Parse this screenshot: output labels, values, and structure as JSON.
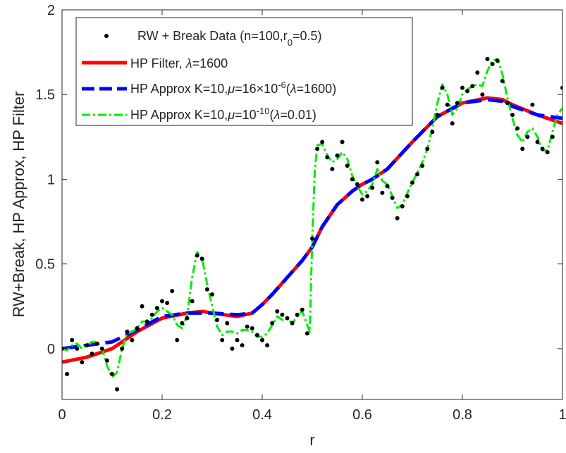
{
  "chart_data": {
    "type": "scatter",
    "xlabel": "r",
    "ylabel": "RW+Break, HP Approx, HP Filter",
    "xlim": [
      0,
      1
    ],
    "ylim": [
      -0.3,
      2
    ],
    "xticks": [
      0,
      0.2,
      0.4,
      0.6,
      0.8,
      1
    ],
    "xtick_labels": [
      "0",
      "0.2",
      "0.4",
      "0.6",
      "0.8",
      "1"
    ],
    "yticks": [
      0,
      0.5,
      1,
      1.5,
      2
    ],
    "ytick_labels": [
      "0",
      "0.5",
      "1",
      "1.5",
      "2"
    ],
    "grid": false,
    "legend_position": "top-left",
    "legend": [
      {
        "label": "RW + Break Data (n=100,r0=0.5)",
        "style": "marker",
        "color": "#000000"
      },
      {
        "label": "HP Filter, λ=1600",
        "style": "solid",
        "color": "#ff0000"
      },
      {
        "label": "HP Approx  K=10,μ=16×10-6(λ=1600)",
        "style": "dashed",
        "color": "#0000ff"
      },
      {
        "label": "HP Approx  K=10,μ=10-10(λ=0.01)",
        "style": "dashdot",
        "color": "#00ee00"
      }
    ],
    "series": [
      {
        "name": "RW + Break Data (n=100,r0=0.5)",
        "kind": "scatter",
        "color": "#000000",
        "points": [
          [
            0.0,
            0.0
          ],
          [
            0.01,
            -0.15
          ],
          [
            0.02,
            0.05
          ],
          [
            0.03,
            0.0
          ],
          [
            0.04,
            -0.08
          ],
          [
            0.05,
            0.02
          ],
          [
            0.06,
            -0.03
          ],
          [
            0.07,
            0.03
          ],
          [
            0.08,
            0.0
          ],
          [
            0.09,
            -0.07
          ],
          [
            0.1,
            -0.15
          ],
          [
            0.11,
            -0.24
          ],
          [
            0.12,
            0.0
          ],
          [
            0.13,
            0.1
          ],
          [
            0.14,
            0.05
          ],
          [
            0.15,
            0.12
          ],
          [
            0.16,
            0.25
          ],
          [
            0.17,
            0.16
          ],
          [
            0.18,
            0.2
          ],
          [
            0.19,
            0.24
          ],
          [
            0.2,
            0.28
          ],
          [
            0.21,
            0.27
          ],
          [
            0.22,
            0.34
          ],
          [
            0.23,
            0.05
          ],
          [
            0.24,
            0.15
          ],
          [
            0.25,
            0.18
          ],
          [
            0.26,
            0.28
          ],
          [
            0.27,
            0.55
          ],
          [
            0.28,
            0.53
          ],
          [
            0.29,
            0.35
          ],
          [
            0.3,
            0.32
          ],
          [
            0.31,
            0.17
          ],
          [
            0.32,
            0.05
          ],
          [
            0.33,
            0.15
          ],
          [
            0.34,
            0.0
          ],
          [
            0.35,
            0.05
          ],
          [
            0.36,
            0.02
          ],
          [
            0.37,
            0.13
          ],
          [
            0.38,
            0.12
          ],
          [
            0.39,
            0.08
          ],
          [
            0.4,
            0.05
          ],
          [
            0.41,
            0.02
          ],
          [
            0.42,
            0.15
          ],
          [
            0.43,
            0.22
          ],
          [
            0.44,
            0.2
          ],
          [
            0.45,
            0.18
          ],
          [
            0.46,
            0.15
          ],
          [
            0.47,
            0.2
          ],
          [
            0.48,
            0.23
          ],
          [
            0.49,
            0.09
          ],
          [
            0.5,
            0.65
          ],
          [
            0.51,
            1.18
          ],
          [
            0.52,
            1.22
          ],
          [
            0.53,
            1.13
          ],
          [
            0.54,
            1.06
          ],
          [
            0.55,
            1.14
          ],
          [
            0.56,
            1.22
          ],
          [
            0.57,
            1.08
          ],
          [
            0.58,
            1.0
          ],
          [
            0.59,
            0.97
          ],
          [
            0.6,
            0.88
          ],
          [
            0.61,
            0.9
          ],
          [
            0.62,
            0.95
          ],
          [
            0.63,
            1.1
          ],
          [
            0.64,
            0.92
          ],
          [
            0.65,
            0.96
          ],
          [
            0.66,
            0.89
          ],
          [
            0.67,
            0.77
          ],
          [
            0.68,
            0.84
          ],
          [
            0.69,
            0.9
          ],
          [
            0.7,
            0.98
          ],
          [
            0.71,
            1.03
          ],
          [
            0.72,
            1.08
          ],
          [
            0.73,
            1.18
          ],
          [
            0.74,
            1.28
          ],
          [
            0.75,
            1.38
          ],
          [
            0.76,
            1.54
          ],
          [
            0.77,
            1.44
          ],
          [
            0.78,
            1.33
          ],
          [
            0.79,
            1.45
          ],
          [
            0.8,
            1.54
          ],
          [
            0.81,
            1.52
          ],
          [
            0.82,
            1.55
          ],
          [
            0.83,
            1.63
          ],
          [
            0.84,
            1.5
          ],
          [
            0.85,
            1.71
          ],
          [
            0.86,
            1.68
          ],
          [
            0.87,
            1.7
          ],
          [
            0.88,
            1.58
          ],
          [
            0.89,
            1.45
          ],
          [
            0.9,
            1.38
          ],
          [
            0.91,
            1.3
          ],
          [
            0.92,
            1.18
          ],
          [
            0.93,
            1.25
          ],
          [
            0.94,
            1.44
          ],
          [
            0.95,
            1.22
          ],
          [
            0.96,
            1.18
          ],
          [
            0.97,
            1.16
          ],
          [
            0.98,
            1.25
          ],
          [
            1.0,
            1.54
          ]
        ]
      },
      {
        "name": "HP Filter, λ=1600",
        "kind": "line",
        "style": "solid",
        "color": "#ff0000",
        "points": [
          [
            0.0,
            -0.08
          ],
          [
            0.05,
            -0.05
          ],
          [
            0.1,
            0.0
          ],
          [
            0.15,
            0.1
          ],
          [
            0.2,
            0.18
          ],
          [
            0.25,
            0.21
          ],
          [
            0.28,
            0.22
          ],
          [
            0.3,
            0.21
          ],
          [
            0.35,
            0.19
          ],
          [
            0.38,
            0.21
          ],
          [
            0.4,
            0.26
          ],
          [
            0.42,
            0.32
          ],
          [
            0.45,
            0.42
          ],
          [
            0.48,
            0.52
          ],
          [
            0.5,
            0.6
          ],
          [
            0.52,
            0.72
          ],
          [
            0.55,
            0.85
          ],
          [
            0.58,
            0.93
          ],
          [
            0.6,
            0.97
          ],
          [
            0.62,
            1.0
          ],
          [
            0.65,
            1.06
          ],
          [
            0.7,
            1.22
          ],
          [
            0.75,
            1.37
          ],
          [
            0.8,
            1.45
          ],
          [
            0.85,
            1.48
          ],
          [
            0.88,
            1.47
          ],
          [
            0.9,
            1.44
          ],
          [
            0.95,
            1.38
          ],
          [
            1.0,
            1.33
          ]
        ]
      },
      {
        "name": "HP Approx  K=10,μ=16×10-6(λ=1600)",
        "kind": "line",
        "style": "dashed",
        "color": "#0000ff",
        "points": [
          [
            0.0,
            0.0
          ],
          [
            0.05,
            0.02
          ],
          [
            0.1,
            0.04
          ],
          [
            0.15,
            0.11
          ],
          [
            0.2,
            0.19
          ],
          [
            0.25,
            0.21
          ],
          [
            0.28,
            0.21
          ],
          [
            0.3,
            0.21
          ],
          [
            0.35,
            0.2
          ],
          [
            0.38,
            0.21
          ],
          [
            0.4,
            0.26
          ],
          [
            0.42,
            0.32
          ],
          [
            0.45,
            0.42
          ],
          [
            0.48,
            0.52
          ],
          [
            0.5,
            0.6
          ],
          [
            0.52,
            0.72
          ],
          [
            0.55,
            0.85
          ],
          [
            0.58,
            0.93
          ],
          [
            0.6,
            0.97
          ],
          [
            0.62,
            1.0
          ],
          [
            0.65,
            1.06
          ],
          [
            0.7,
            1.22
          ],
          [
            0.75,
            1.37
          ],
          [
            0.8,
            1.45
          ],
          [
            0.85,
            1.47
          ],
          [
            0.88,
            1.46
          ],
          [
            0.9,
            1.43
          ],
          [
            0.95,
            1.38
          ],
          [
            1.0,
            1.36
          ]
        ]
      },
      {
        "name": "HP Approx  K=10,μ=10-10(λ=0.01)",
        "kind": "line",
        "style": "dashdot",
        "color": "#00ee00",
        "points": [
          [
            0.0,
            0.0
          ],
          [
            0.01,
            -0.01
          ],
          [
            0.02,
            0.02
          ],
          [
            0.03,
            0.03
          ],
          [
            0.04,
            0.0
          ],
          [
            0.05,
            0.02
          ],
          [
            0.06,
            0.04
          ],
          [
            0.07,
            0.04
          ],
          [
            0.08,
            0.0
          ],
          [
            0.09,
            -0.1
          ],
          [
            0.1,
            -0.17
          ],
          [
            0.11,
            -0.14
          ],
          [
            0.12,
            0.0
          ],
          [
            0.13,
            0.09
          ],
          [
            0.14,
            0.1
          ],
          [
            0.15,
            0.12
          ],
          [
            0.16,
            0.16
          ],
          [
            0.17,
            0.16
          ],
          [
            0.18,
            0.18
          ],
          [
            0.19,
            0.22
          ],
          [
            0.2,
            0.24
          ],
          [
            0.21,
            0.22
          ],
          [
            0.22,
            0.2
          ],
          [
            0.23,
            0.14
          ],
          [
            0.24,
            0.12
          ],
          [
            0.25,
            0.2
          ],
          [
            0.26,
            0.42
          ],
          [
            0.27,
            0.57
          ],
          [
            0.28,
            0.53
          ],
          [
            0.29,
            0.38
          ],
          [
            0.3,
            0.25
          ],
          [
            0.31,
            0.13
          ],
          [
            0.32,
            0.08
          ],
          [
            0.33,
            0.1
          ],
          [
            0.34,
            0.1
          ],
          [
            0.35,
            0.09
          ],
          [
            0.36,
            0.11
          ],
          [
            0.37,
            0.11
          ],
          [
            0.38,
            0.1
          ],
          [
            0.39,
            0.07
          ],
          [
            0.4,
            0.07
          ],
          [
            0.41,
            0.09
          ],
          [
            0.42,
            0.14
          ],
          [
            0.43,
            0.19
          ],
          [
            0.44,
            0.17
          ],
          [
            0.45,
            0.18
          ],
          [
            0.46,
            0.15
          ],
          [
            0.47,
            0.19
          ],
          [
            0.48,
            0.22
          ],
          [
            0.49,
            0.14
          ],
          [
            0.495,
            0.1
          ],
          [
            0.5,
            0.65
          ],
          [
            0.505,
            1.05
          ],
          [
            0.51,
            1.2
          ],
          [
            0.52,
            1.21
          ],
          [
            0.53,
            1.14
          ],
          [
            0.54,
            1.1
          ],
          [
            0.55,
            1.12
          ],
          [
            0.56,
            1.16
          ],
          [
            0.57,
            1.12
          ],
          [
            0.58,
            1.02
          ],
          [
            0.59,
            0.96
          ],
          [
            0.6,
            0.91
          ],
          [
            0.61,
            0.93
          ],
          [
            0.62,
            0.97
          ],
          [
            0.63,
            1.06
          ],
          [
            0.64,
            0.99
          ],
          [
            0.65,
            0.97
          ],
          [
            0.66,
            0.9
          ],
          [
            0.67,
            0.83
          ],
          [
            0.68,
            0.85
          ],
          [
            0.69,
            0.92
          ],
          [
            0.7,
            0.98
          ],
          [
            0.71,
            1.04
          ],
          [
            0.72,
            1.1
          ],
          [
            0.73,
            1.18
          ],
          [
            0.74,
            1.3
          ],
          [
            0.75,
            1.45
          ],
          [
            0.76,
            1.56
          ],
          [
            0.77,
            1.5
          ],
          [
            0.78,
            1.38
          ],
          [
            0.79,
            1.42
          ],
          [
            0.8,
            1.5
          ],
          [
            0.81,
            1.53
          ],
          [
            0.82,
            1.55
          ],
          [
            0.83,
            1.56
          ],
          [
            0.84,
            1.55
          ],
          [
            0.85,
            1.64
          ],
          [
            0.86,
            1.7
          ],
          [
            0.87,
            1.71
          ],
          [
            0.88,
            1.62
          ],
          [
            0.89,
            1.48
          ],
          [
            0.9,
            1.36
          ],
          [
            0.91,
            1.26
          ],
          [
            0.92,
            1.22
          ],
          [
            0.93,
            1.28
          ],
          [
            0.94,
            1.3
          ],
          [
            0.95,
            1.25
          ],
          [
            0.96,
            1.17
          ],
          [
            0.97,
            1.17
          ],
          [
            0.98,
            1.28
          ],
          [
            0.99,
            1.38
          ],
          [
            1.0,
            1.42
          ]
        ]
      }
    ]
  }
}
